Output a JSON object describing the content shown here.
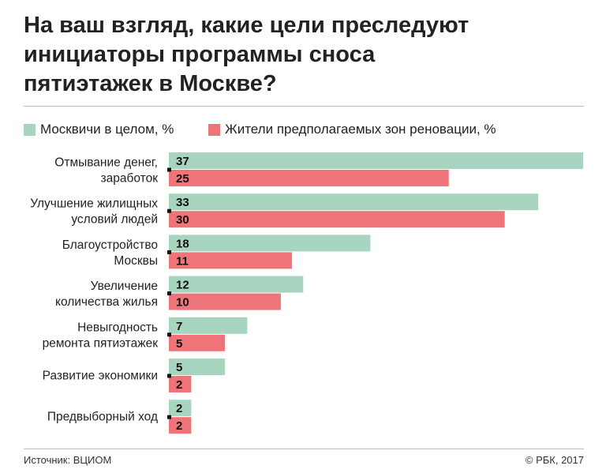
{
  "title_lines": [
    "На ваш взгляд, какие цели преследуют",
    "инициаторы программы сноса",
    "пятиэтажек в Москве?"
  ],
  "footer": {
    "source": "Источник: ВЦИОМ",
    "credit": "© РБК, 2017"
  },
  "colors": {
    "series_1": "#a8d5bf",
    "series_2": "#ee7479",
    "text": "#222222",
    "rule": "#bdbdbd"
  },
  "chart_data": {
    "type": "bar",
    "orientation": "horizontal",
    "categories": [
      [
        "Отмывание денег,",
        "заработок"
      ],
      [
        "Улучшение жилищных",
        "условий людей"
      ],
      [
        "Благоустройство",
        "Москвы"
      ],
      [
        "Увеличение",
        "количества жилья"
      ],
      [
        "Невыгодность",
        "ремонта пятиэтажек"
      ],
      [
        "Развитие экономики"
      ],
      [
        "Предвыборный ход"
      ]
    ],
    "series": [
      {
        "name": "Москвичи в целом, %",
        "color": "#a8d5bf",
        "values": [
          37,
          33,
          18,
          12,
          7,
          5,
          2
        ]
      },
      {
        "name": "Жители предполагаемых зон реновации, %",
        "color": "#ee7479",
        "values": [
          25,
          30,
          11,
          10,
          5,
          2,
          2
        ]
      }
    ],
    "xlim": [
      0,
      37
    ],
    "grid": false,
    "legend": "top-left"
  }
}
